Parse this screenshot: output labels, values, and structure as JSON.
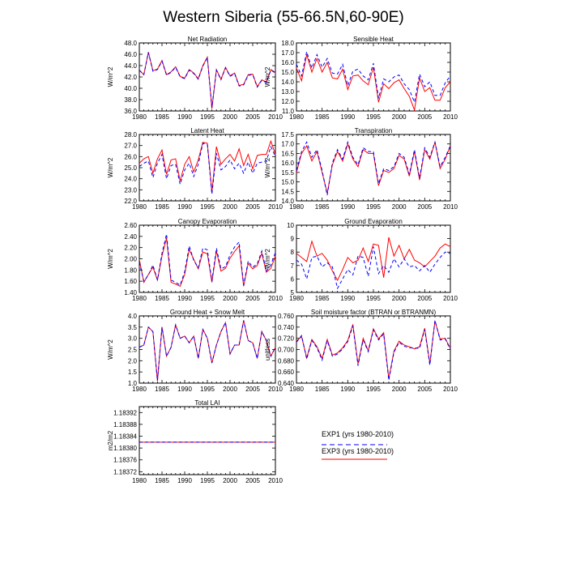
{
  "title": "Western Siberia (55-66.5N,60-90E)",
  "legend": {
    "exp1": {
      "label": "EXP1 (yrs 1980-2010)",
      "color": "#0000ff",
      "style": "dashed"
    },
    "exp3": {
      "label": "EXP3 (yrs 1980-2010)",
      "color": "#ff0000",
      "style": "solid"
    }
  },
  "x_ticks": [
    "1980",
    "1985",
    "1990",
    "1995",
    "2000",
    "2005",
    "2010"
  ],
  "chart_data": [
    {
      "type": "line",
      "title": "Net Radiation",
      "ylabel": "W/m^2",
      "ylim": [
        36.0,
        48.0
      ],
      "yticks": [
        "36.0",
        "38.0",
        "40.0",
        "42.0",
        "44.0",
        "46.0",
        "48.0"
      ],
      "x": [
        1980,
        1981,
        1982,
        1983,
        1984,
        1985,
        1986,
        1987,
        1988,
        1989,
        1990,
        1991,
        1992,
        1993,
        1994,
        1995,
        1996,
        1997,
        1998,
        1999,
        2000,
        2001,
        2002,
        2003,
        2004,
        2005,
        2006,
        2007,
        2008,
        2009,
        2010
      ],
      "series": [
        {
          "name": "EXP1",
          "values": [
            43.2,
            42.4,
            46.3,
            43.0,
            43.3,
            44.8,
            42.3,
            42.8,
            43.7,
            42.0,
            41.7,
            43.2,
            42.6,
            41.6,
            43.9,
            45.4,
            36.6,
            43.2,
            41.5,
            43.6,
            42.1,
            42.6,
            40.4,
            40.6,
            42.3,
            42.4,
            40.2,
            41.4,
            41.0,
            43.2,
            42.7
          ]
        },
        {
          "name": "EXP3",
          "values": [
            43.2,
            42.4,
            46.4,
            43.1,
            43.4,
            44.9,
            42.4,
            42.9,
            43.8,
            42.1,
            41.8,
            43.3,
            42.7,
            41.7,
            44.0,
            45.5,
            36.4,
            43.3,
            41.6,
            43.7,
            42.2,
            42.7,
            40.5,
            40.7,
            42.4,
            42.5,
            40.3,
            41.5,
            41.1,
            43.3,
            42.8
          ]
        }
      ]
    },
    {
      "type": "line",
      "title": "Sensible Heat",
      "ylabel": "W/m^2",
      "ylim": [
        11.0,
        18.0
      ],
      "yticks": [
        "11.0",
        "12.0",
        "13.0",
        "14.0",
        "15.0",
        "16.0",
        "17.0",
        "18.0"
      ],
      "x": [
        1980,
        1981,
        1982,
        1983,
        1984,
        1985,
        1986,
        1987,
        1988,
        1989,
        1990,
        1991,
        1992,
        1993,
        1994,
        1995,
        1996,
        1997,
        1998,
        1999,
        2000,
        2001,
        2002,
        2003,
        2004,
        2005,
        2006,
        2007,
        2008,
        2009,
        2010
      ],
      "series": [
        {
          "name": "EXP1",
          "values": [
            15.8,
            14.6,
            17.1,
            15.4,
            16.8,
            15.5,
            16.4,
            14.9,
            14.8,
            15.8,
            13.6,
            15.1,
            15.3,
            14.6,
            14.2,
            15.9,
            12.3,
            14.3,
            14.0,
            14.5,
            14.7,
            13.8,
            13.2,
            11.9,
            14.8,
            13.5,
            14.0,
            12.6,
            12.6,
            13.9,
            14.6
          ]
        },
        {
          "name": "EXP3",
          "values": [
            15.4,
            14.1,
            16.8,
            15.0,
            16.4,
            15.0,
            16.0,
            14.4,
            14.3,
            15.3,
            13.2,
            14.6,
            14.7,
            14.1,
            13.7,
            15.5,
            11.9,
            13.8,
            13.3,
            13.9,
            14.2,
            13.3,
            12.5,
            11.1,
            14.4,
            13.0,
            13.4,
            12.1,
            12.1,
            13.4,
            14.0
          ]
        }
      ]
    },
    {
      "type": "line",
      "title": "Latent Heat",
      "ylabel": "W/m^2",
      "ylim": [
        22.0,
        28.0
      ],
      "yticks": [
        "22.0",
        "23.0",
        "24.0",
        "25.0",
        "26.0",
        "27.0",
        "28.0"
      ],
      "x": [
        1980,
        1981,
        1982,
        1983,
        1984,
        1985,
        1986,
        1987,
        1988,
        1989,
        1990,
        1991,
        1992,
        1993,
        1994,
        1995,
        1996,
        1997,
        1998,
        1999,
        2000,
        2001,
        2002,
        2003,
        2004,
        2005,
        2006,
        2007,
        2008,
        2009,
        2010
      ],
      "series": [
        {
          "name": "EXP1",
          "values": [
            25.1,
            25.4,
            25.6,
            24.1,
            25.4,
            26.2,
            24.0,
            25.2,
            25.3,
            23.5,
            24.8,
            25.4,
            24.2,
            25.3,
            27.2,
            27.1,
            22.6,
            26.3,
            24.8,
            25.1,
            25.7,
            24.9,
            25.4,
            24.5,
            25.5,
            24.5,
            25.4,
            25.5,
            25.6,
            26.9,
            26.0
          ]
        },
        {
          "name": "EXP3",
          "values": [
            25.4,
            25.8,
            26.0,
            24.5,
            25.8,
            26.6,
            24.4,
            25.7,
            25.8,
            23.8,
            25.3,
            26.0,
            24.6,
            25.7,
            27.3,
            27.2,
            22.8,
            26.9,
            25.3,
            25.8,
            26.2,
            25.6,
            26.7,
            25.2,
            26.2,
            24.9,
            26.1,
            26.2,
            26.2,
            27.4,
            26.2
          ]
        }
      ]
    },
    {
      "type": "line",
      "title": "Transpiration",
      "ylabel": "W/m^2",
      "ylim": [
        14.0,
        17.5
      ],
      "yticks": [
        "14.0",
        "14.5",
        "15.0",
        "15.5",
        "16.0",
        "16.5",
        "17.0",
        "17.5"
      ],
      "x": [
        1980,
        1981,
        1982,
        1983,
        1984,
        1985,
        1986,
        1987,
        1988,
        1989,
        1990,
        1991,
        1992,
        1993,
        1994,
        1995,
        1996,
        1997,
        1998,
        1999,
        2000,
        2001,
        2002,
        2003,
        2004,
        2005,
        2006,
        2007,
        2008,
        2009,
        2010
      ],
      "series": [
        {
          "name": "EXP1",
          "values": [
            15.6,
            16.6,
            17.1,
            16.3,
            16.7,
            15.6,
            14.3,
            16.0,
            16.7,
            16.2,
            17.1,
            16.3,
            15.9,
            16.8,
            16.6,
            16.6,
            14.9,
            15.7,
            15.6,
            15.8,
            16.5,
            16.3,
            15.4,
            16.7,
            15.2,
            16.8,
            16.3,
            17.1,
            15.8,
            16.3,
            16.9
          ]
        },
        {
          "name": "EXP3",
          "values": [
            15.5,
            16.5,
            16.9,
            16.1,
            16.6,
            15.5,
            14.4,
            15.9,
            16.6,
            16.1,
            17.0,
            16.2,
            15.8,
            16.7,
            16.5,
            16.5,
            14.8,
            15.6,
            15.5,
            15.7,
            16.4,
            16.2,
            15.3,
            16.6,
            15.1,
            16.7,
            16.2,
            17.1,
            15.7,
            16.2,
            16.9
          ]
        }
      ]
    },
    {
      "type": "line",
      "title": "Canopy Evaporation",
      "ylabel": "W/m^2",
      "ylim": [
        1.4,
        2.6
      ],
      "yticks": [
        "1.40",
        "1.60",
        "1.80",
        "2.00",
        "2.20",
        "2.40",
        "2.60"
      ],
      "x": [
        1980,
        1981,
        1982,
        1983,
        1984,
        1985,
        1986,
        1987,
        1988,
        1989,
        1990,
        1991,
        1992,
        1993,
        1994,
        1995,
        1996,
        1997,
        1998,
        1999,
        2000,
        2001,
        2002,
        2003,
        2004,
        2005,
        2006,
        2007,
        2008,
        2009,
        2010
      ],
      "series": [
        {
          "name": "EXP1",
          "values": [
            1.94,
            1.6,
            1.71,
            1.89,
            1.62,
            2.1,
            2.44,
            1.62,
            1.58,
            1.53,
            1.77,
            2.23,
            1.97,
            1.84,
            2.19,
            2.16,
            1.6,
            2.19,
            1.82,
            1.86,
            2.07,
            2.21,
            2.3,
            1.53,
            1.96,
            1.85,
            1.91,
            2.14,
            1.78,
            1.89,
            2.11
          ]
        },
        {
          "name": "EXP3",
          "values": [
            1.99,
            1.58,
            1.72,
            1.85,
            1.62,
            2.05,
            2.37,
            1.58,
            1.55,
            1.51,
            1.72,
            2.17,
            1.99,
            1.82,
            2.12,
            2.09,
            1.58,
            2.14,
            1.78,
            1.83,
            2.01,
            2.13,
            2.23,
            1.51,
            1.92,
            1.82,
            1.88,
            2.1,
            1.76,
            1.83,
            2.05
          ]
        }
      ]
    },
    {
      "type": "line",
      "title": "Ground Evaporation",
      "ylabel": "W/m^2",
      "ylim": [
        5,
        10
      ],
      "yticks": [
        "5",
        "6",
        "7",
        "8",
        "9",
        "10"
      ],
      "x": [
        1980,
        1981,
        1982,
        1983,
        1984,
        1985,
        1986,
        1987,
        1988,
        1989,
        1990,
        1991,
        1992,
        1993,
        1994,
        1995,
        1996,
        1997,
        1998,
        1999,
        2000,
        2001,
        2002,
        2003,
        2004,
        2005,
        2006,
        2007,
        2008,
        2009,
        2010
      ],
      "series": [
        {
          "name": "EXP1",
          "values": [
            7.4,
            7.1,
            6.0,
            7.6,
            7.7,
            6.9,
            7.2,
            6.9,
            5.3,
            6.0,
            6.7,
            6.3,
            7.7,
            7.6,
            6.2,
            8.4,
            6.4,
            7.0,
            6.5,
            7.5,
            6.9,
            7.5,
            6.9,
            7.0,
            6.6,
            7.0,
            6.5,
            7.1,
            7.6,
            8.0,
            7.9
          ]
        },
        {
          "name": "EXP3",
          "values": [
            7.9,
            7.6,
            7.3,
            8.8,
            7.7,
            7.9,
            7.4,
            6.6,
            5.9,
            6.7,
            7.6,
            7.2,
            7.4,
            8.3,
            7.3,
            8.6,
            8.5,
            6.1,
            9.1,
            7.7,
            8.5,
            7.5,
            8.2,
            7.4,
            7.2,
            6.9,
            7.3,
            7.7,
            8.3,
            8.6,
            8.4
          ]
        }
      ]
    },
    {
      "type": "line",
      "title": "Ground Heat + Snow Melt",
      "ylabel": "W/m^2",
      "ylim": [
        1.0,
        4.0
      ],
      "yticks": [
        "1.0",
        "1.5",
        "2.0",
        "2.5",
        "3.0",
        "3.5",
        "4.0"
      ],
      "x": [
        1980,
        1981,
        1982,
        1983,
        1984,
        1985,
        1986,
        1987,
        1988,
        1989,
        1990,
        1991,
        1992,
        1993,
        1994,
        1995,
        1996,
        1997,
        1998,
        1999,
        2000,
        2001,
        2002,
        2003,
        2004,
        2005,
        2006,
        2007,
        2008,
        2009,
        2010
      ],
      "series": [
        {
          "name": "EXP1",
          "values": [
            2.6,
            2.7,
            3.5,
            3.3,
            1.1,
            3.5,
            2.2,
            2.6,
            3.6,
            3.0,
            3.1,
            2.8,
            3.1,
            2.1,
            3.4,
            3.0,
            1.9,
            2.7,
            3.3,
            3.7,
            2.3,
            2.7,
            2.7,
            3.8,
            2.9,
            2.8,
            2.1,
            3.3,
            2.9,
            2.2,
            2.6
          ]
        },
        {
          "name": "EXP3",
          "values": [
            2.6,
            2.7,
            3.5,
            3.3,
            1.1,
            3.5,
            2.2,
            2.6,
            3.6,
            3.0,
            3.1,
            2.8,
            3.1,
            2.1,
            3.4,
            3.0,
            1.9,
            2.7,
            3.3,
            3.7,
            2.3,
            2.7,
            2.7,
            3.8,
            2.9,
            2.8,
            2.1,
            3.3,
            2.9,
            2.2,
            2.6
          ]
        }
      ]
    },
    {
      "type": "line",
      "title": "Soil moisture factor (BTRAN or BTRANMN)",
      "ylabel": "unitless",
      "ylim": [
        0.64,
        0.76
      ],
      "yticks": [
        "0.640",
        "0.660",
        "0.680",
        "0.700",
        "0.720",
        "0.740",
        "0.760"
      ],
      "x": [
        1980,
        1981,
        1982,
        1983,
        1984,
        1985,
        1986,
        1987,
        1988,
        1989,
        1990,
        1991,
        1992,
        1993,
        1994,
        1995,
        1996,
        1997,
        1998,
        1999,
        2000,
        2001,
        2002,
        2003,
        2004,
        2005,
        2006,
        2007,
        2008,
        2009,
        2010
      ],
      "series": [
        {
          "name": "EXP1",
          "values": [
            0.713,
            0.725,
            0.683,
            0.716,
            0.703,
            0.681,
            0.716,
            0.688,
            0.692,
            0.701,
            0.714,
            0.742,
            0.671,
            0.717,
            0.696,
            0.735,
            0.717,
            0.728,
            0.645,
            0.695,
            0.713,
            0.706,
            0.703,
            0.703,
            0.702,
            0.736,
            0.672,
            0.752,
            0.717,
            0.719,
            0.7
          ]
        },
        {
          "name": "EXP3",
          "values": [
            0.715,
            0.723,
            0.685,
            0.718,
            0.705,
            0.684,
            0.718,
            0.69,
            0.694,
            0.703,
            0.716,
            0.745,
            0.674,
            0.72,
            0.698,
            0.737,
            0.719,
            0.73,
            0.648,
            0.697,
            0.715,
            0.708,
            0.705,
            0.701,
            0.705,
            0.738,
            0.675,
            0.751,
            0.719,
            0.72,
            0.702
          ]
        }
      ]
    },
    {
      "type": "line",
      "title": "Total LAI",
      "ylabel": "m2/m2",
      "ylim": [
        1.18371,
        1.18394
      ],
      "yticks": [
        "1.18372",
        "1.18376",
        "1.18380",
        "1.18384",
        "1.18388",
        "1.18392"
      ],
      "x": [
        1980,
        2010
      ],
      "series": [
        {
          "name": "EXP1",
          "values": [
            1.18382,
            1.18382
          ]
        },
        {
          "name": "EXP3",
          "values": [
            1.18382,
            1.18382
          ]
        }
      ]
    }
  ]
}
